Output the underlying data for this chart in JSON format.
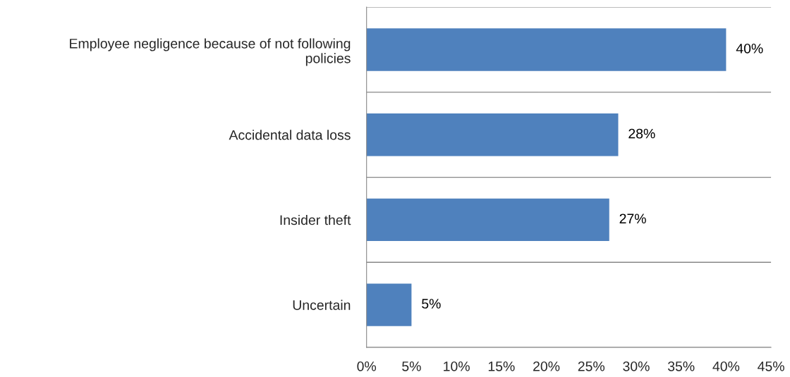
{
  "chart_data": {
    "type": "bar",
    "orientation": "horizontal",
    "categories": [
      "Employee negligence because of not following\npolicies",
      "Accidental data loss",
      "Insider theft",
      "Uncertain"
    ],
    "values": [
      40,
      28,
      27,
      5
    ],
    "color": "#4f81bd",
    "value_labels": [
      "40%",
      "28%",
      "27%",
      "5%"
    ],
    "xlim": [
      0,
      45
    ],
    "xticks": [
      {
        "value": 0,
        "label": "0%"
      },
      {
        "value": 5,
        "label": "5%"
      },
      {
        "value": 10,
        "label": "10%"
      },
      {
        "value": 15,
        "label": "15%"
      },
      {
        "value": 20,
        "label": "20%"
      },
      {
        "value": 25,
        "label": "25%"
      },
      {
        "value": 30,
        "label": "30%"
      },
      {
        "value": 35,
        "label": "35%"
      },
      {
        "value": 40,
        "label": "40%"
      },
      {
        "value": 45,
        "label": "45%"
      }
    ],
    "grid": "y",
    "legend": false
  }
}
